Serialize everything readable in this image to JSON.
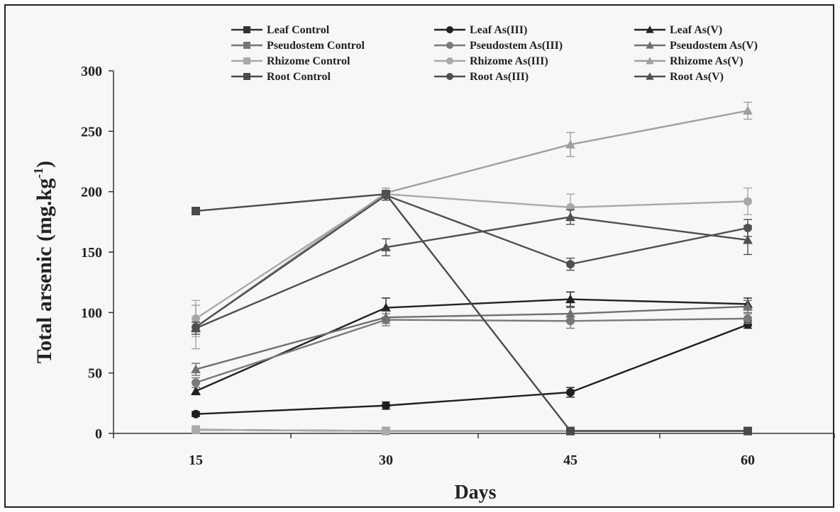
{
  "chart_data": {
    "type": "line",
    "title": "",
    "xlabel": "Days",
    "ylabel_main": "Total arsenic (mg.kg",
    "ylabel_sup": "-1",
    "ylabel_end": ")",
    "x": [
      15,
      30,
      45,
      60
    ],
    "x_tick_labels": [
      "15",
      "30",
      "45",
      "60"
    ],
    "ylim": [
      0,
      300
    ],
    "y_ticks": [
      0,
      50,
      100,
      150,
      200,
      250,
      300
    ],
    "y_tick_labels": [
      "0",
      "50",
      "100",
      "150",
      "200",
      "250",
      "300"
    ],
    "grid": false,
    "legend_position": "top",
    "legend_columns": 3,
    "series": [
      {
        "name": "Leaf Control",
        "marker": "square",
        "color": "#333333",
        "values": [
          3,
          2,
          2,
          2
        ],
        "errors": [
          1,
          1,
          1,
          1
        ]
      },
      {
        "name": "Leaf As(III)",
        "marker": "circle",
        "color": "#1f1f1f",
        "values": [
          16,
          23,
          34,
          90
        ],
        "errors": [
          2,
          3,
          4,
          3
        ]
      },
      {
        "name": "Leaf As(V)",
        "marker": "triangle",
        "color": "#222222",
        "values": [
          35,
          104,
          111,
          107
        ],
        "errors": [
          3,
          8,
          6,
          5
        ]
      },
      {
        "name": "Pseudostem Control",
        "marker": "square",
        "color": "#777777",
        "values": [
          3,
          2,
          2,
          2
        ],
        "errors": [
          1,
          1,
          1,
          1
        ]
      },
      {
        "name": "Pseudostem As(III)",
        "marker": "circle",
        "color": "#7a7a7a",
        "values": [
          42,
          94,
          93,
          95
        ],
        "errors": [
          4,
          5,
          6,
          4
        ]
      },
      {
        "name": "Pseudostem As(V)",
        "marker": "triangle",
        "color": "#707070",
        "values": [
          53,
          96,
          99,
          105
        ],
        "errors": [
          5,
          5,
          5,
          5
        ]
      },
      {
        "name": "Rhizome Control",
        "marker": "square",
        "color": "#a9a9a9",
        "values": [
          3,
          2,
          2,
          2
        ],
        "errors": [
          1,
          1,
          1,
          1
        ]
      },
      {
        "name": "Rhizome As(III)",
        "marker": "circle",
        "color": "#a9a9a9",
        "values": [
          95,
          198,
          187,
          192
        ],
        "errors": [
          15,
          5,
          11,
          11
        ]
      },
      {
        "name": "Rhizome As(V)",
        "marker": "triangle",
        "color": "#a0a0a0",
        "values": [
          88,
          199,
          239,
          267
        ],
        "errors": [
          18,
          4,
          10,
          7
        ]
      },
      {
        "name": "Root Control",
        "marker": "square",
        "color": "#4a4a4a",
        "values": [
          184,
          198,
          2,
          2
        ],
        "errors": [
          3,
          3,
          1,
          1
        ]
      },
      {
        "name": "Root As(III)",
        "marker": "circle",
        "color": "#505050",
        "values": [
          88,
          197,
          140,
          170
        ],
        "errors": [
          4,
          4,
          5,
          7
        ]
      },
      {
        "name": "Root As(V)",
        "marker": "triangle",
        "color": "#505050",
        "values": [
          87,
          154,
          179,
          160
        ],
        "errors": [
          5,
          7,
          6,
          12
        ]
      }
    ]
  }
}
